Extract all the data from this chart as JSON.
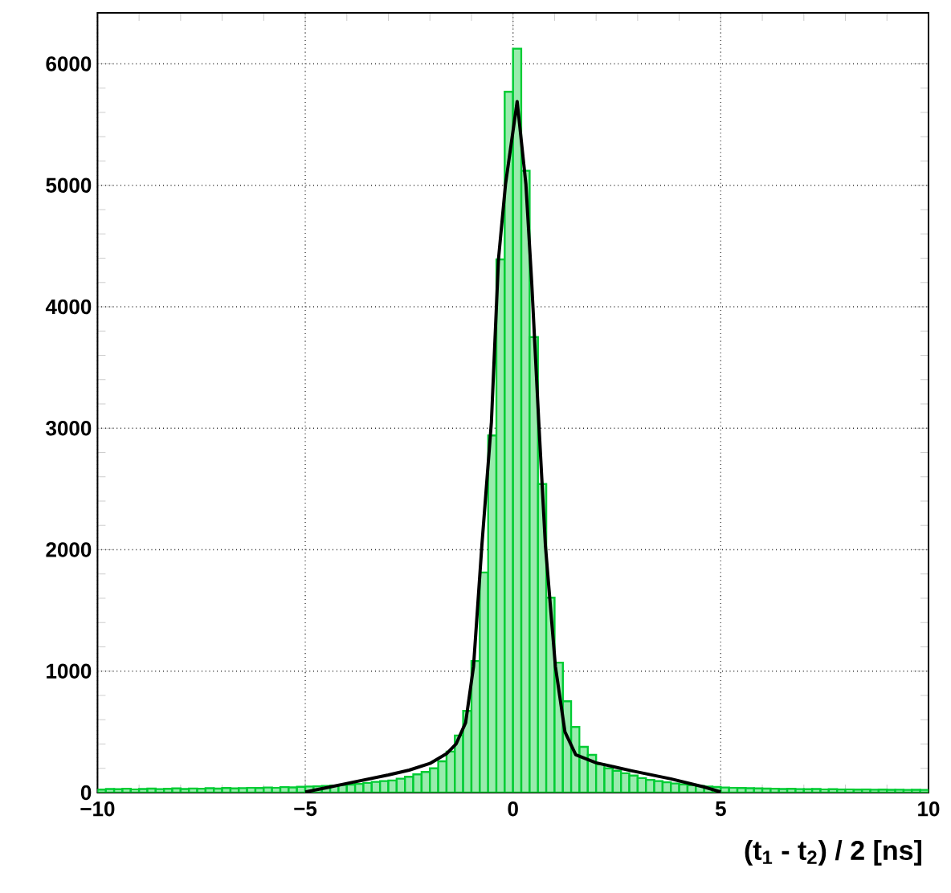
{
  "chart_data": {
    "type": "histogram",
    "xlabel": "(t$_{1}$ - t$_{2}$) / 2 [ns]",
    "bins": [
      -10,
      -9.8,
      -9.6,
      -9.4,
      -9.2,
      -9,
      -8.8,
      -8.6,
      -8.4,
      -8.2,
      -8,
      -7.8,
      -7.6,
      -7.4,
      -7.2,
      -7,
      -6.8,
      -6.6,
      -6.4,
      -6.2,
      -6,
      -5.8,
      -5.6,
      -5.4,
      -5.2,
      -5,
      -4.8,
      -4.6,
      -4.4,
      -4.2,
      -4,
      -3.8,
      -3.6,
      -3.4,
      -3.2,
      -3,
      -2.8,
      -2.6,
      -2.4,
      -2.2,
      -2,
      -1.8,
      -1.6,
      -1.4,
      -1.2,
      -1,
      -0.8,
      -0.6,
      -0.4,
      -0.2,
      0,
      0.2,
      0.4,
      0.6,
      0.8,
      1,
      1.2,
      1.4,
      1.6,
      1.8,
      2,
      2.2,
      2.4,
      2.6,
      2.8,
      3,
      3.2,
      3.4,
      3.6,
      3.8,
      4,
      4.2,
      4.4,
      4.6,
      4.8,
      5,
      5.2,
      5.4,
      5.6,
      5.8,
      6,
      6.2,
      6.4,
      6.6,
      6.8,
      7,
      7.2,
      7.4,
      7.6,
      7.8,
      8,
      8.2,
      8.4,
      8.6,
      8.8,
      9,
      9.2,
      9.4,
      9.6,
      9.8,
      10
    ],
    "values": [
      25,
      30,
      28,
      32,
      27,
      30,
      33,
      29,
      31,
      35,
      30,
      34,
      32,
      36,
      33,
      38,
      35,
      37,
      40,
      38,
      42,
      40,
      45,
      43,
      48,
      50,
      52,
      55,
      58,
      62,
      66,
      72,
      80,
      88,
      95,
      100,
      115,
      130,
      150,
      170,
      200,
      258,
      338,
      470,
      673,
      1083,
      1812,
      2940,
      4390,
      5770,
      6125,
      5120,
      3750,
      2540,
      1605,
      1070,
      752,
      540,
      377,
      311,
      232,
      200,
      180,
      160,
      140,
      120,
      105,
      95,
      85,
      75,
      68,
      60,
      55,
      50,
      46,
      42,
      40,
      38,
      36,
      35,
      33,
      32,
      30,
      31,
      29,
      28,
      30,
      27,
      28,
      26,
      27,
      25,
      26,
      24,
      25,
      23,
      24,
      22,
      23,
      22
    ],
    "color": "#00cc33",
    "series": [
      {
        "type": "line",
        "color": "#000000",
        "x": [
          -5,
          -4.5,
          -4,
          -3.5,
          -3,
          -2.5,
          -2,
          -1.6,
          -1.37,
          -1.14,
          -0.95,
          -0.75,
          -0.52,
          -0.35,
          -0.18,
          0.1,
          0.31,
          0.45,
          0.62,
          0.78,
          1.02,
          1.25,
          1.51,
          2,
          2.86,
          3.8,
          4.6,
          5
        ],
        "values": [
          5,
          40,
          75,
          110,
          145,
          185,
          240,
          320,
          400,
          576,
          1040,
          2033,
          3050,
          4390,
          5010,
          5690,
          5010,
          4200,
          3050,
          2033,
          1040,
          500,
          311,
          245,
          179,
          113,
          46,
          5
        ]
      }
    ],
    "xlim": [
      -10,
      10
    ],
    "ylim": [
      0,
      6420
    ],
    "xticks": [
      {
        "value": -10,
        "label": "−10"
      },
      {
        "value": -5,
        "label": "−5"
      },
      0,
      5,
      10
    ],
    "yticks": [
      0,
      1000,
      2000,
      3000,
      4000,
      5000,
      6000
    ],
    "grid": true
  }
}
